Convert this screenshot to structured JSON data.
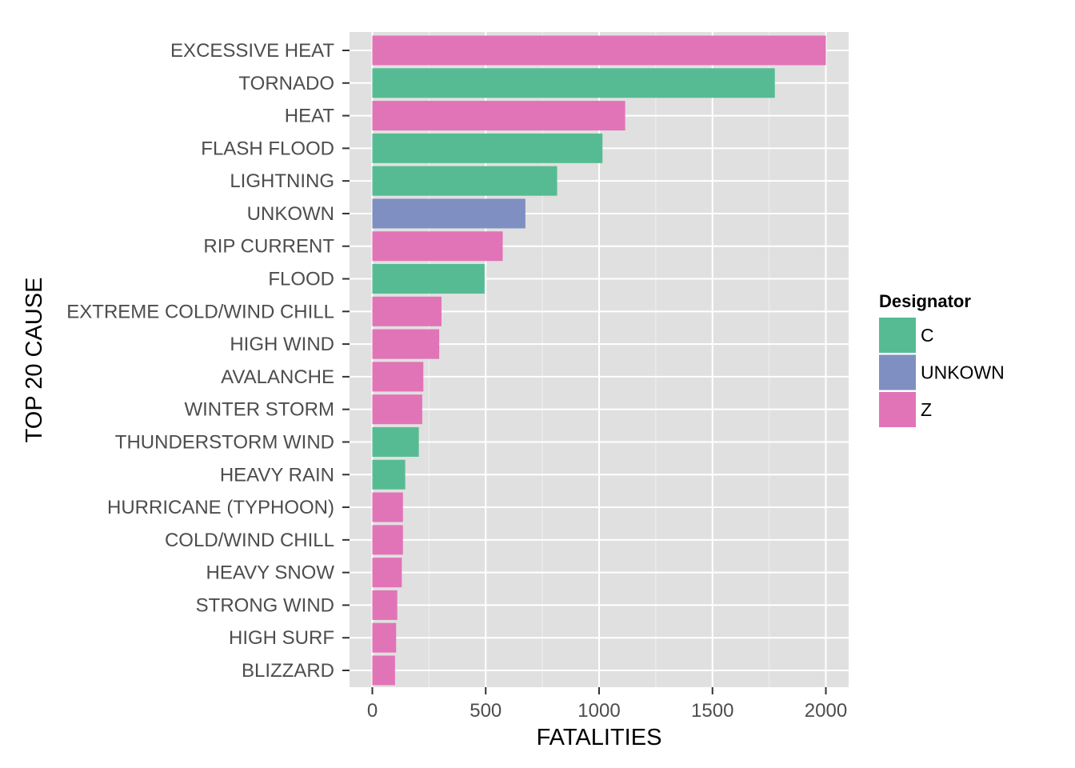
{
  "chart_data": {
    "type": "bar",
    "orientation": "horizontal",
    "xlabel": "FATALITIES",
    "ylabel": "TOP 20 CAUSE",
    "xlim": [
      -100,
      2100
    ],
    "x_ticks": [
      0,
      500,
      1000,
      1500,
      2000
    ],
    "grid": true,
    "categories": [
      "EXCESSIVE HEAT",
      "TORNADO",
      "HEAT",
      "FLASH FLOOD",
      "LIGHTNING",
      "UNKOWN",
      "RIP CURRENT",
      "FLOOD",
      "EXTREME COLD/WIND CHILL",
      "HIGH WIND",
      "AVALANCHE",
      "WINTER STORM",
      "THUNDERSTORM WIND",
      "HEAVY RAIN",
      "HURRICANE (TYPHOON)",
      "COLD/WIND CHILL",
      "HEAVY SNOW",
      "STRONG WIND",
      "HIGH SURF",
      "BLIZZARD"
    ],
    "values": [
      2000,
      1775,
      1115,
      1015,
      815,
      675,
      575,
      495,
      305,
      295,
      225,
      220,
      205,
      145,
      135,
      135,
      130,
      110,
      105,
      100
    ],
    "groups": [
      "Z",
      "C",
      "Z",
      "C",
      "C",
      "UNKOWN",
      "Z",
      "C",
      "Z",
      "Z",
      "Z",
      "Z",
      "C",
      "C",
      "Z",
      "Z",
      "Z",
      "Z",
      "Z",
      "Z"
    ],
    "legend": {
      "title": "Designator",
      "position": "right",
      "entries": [
        {
          "label": "C",
          "color": "#56bb93"
        },
        {
          "label": "UNKOWN",
          "color": "#7f8fc1"
        },
        {
          "label": "Z",
          "color": "#e174b7"
        }
      ]
    }
  }
}
